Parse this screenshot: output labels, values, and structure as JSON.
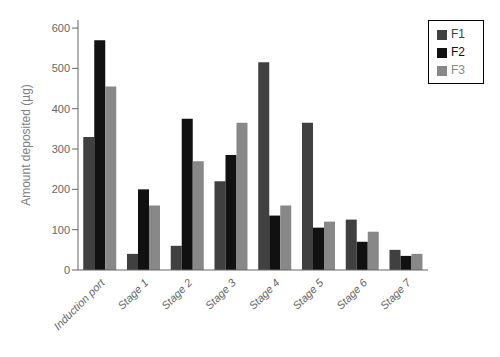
{
  "chart_data": {
    "type": "bar",
    "categories": [
      "Induction port",
      "Stage 1",
      "Stage 2",
      "Stage 3",
      "Stage 4",
      "Stage 5",
      "Stage 6",
      "Stage 7"
    ],
    "series": [
      {
        "name": "F1",
        "color": "#404040",
        "values": [
          330,
          40,
          60,
          220,
          515,
          365,
          125,
          50
        ]
      },
      {
        "name": "F2",
        "color": "#111111",
        "values": [
          570,
          200,
          375,
          285,
          135,
          105,
          70,
          35
        ]
      },
      {
        "name": "F3",
        "color": "#888888",
        "values": [
          455,
          160,
          270,
          365,
          160,
          120,
          95,
          40
        ]
      }
    ],
    "ylabel": "Amount deposited (µg)",
    "ylim": [
      0,
      620
    ],
    "yticks": [
      0,
      100,
      200,
      300,
      400,
      500,
      600
    ],
    "grid": false,
    "legend": "upper right"
  }
}
